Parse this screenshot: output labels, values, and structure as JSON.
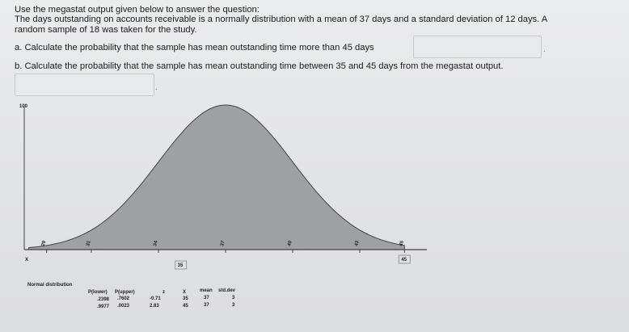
{
  "question": {
    "intro": "Use the megastat output given below to answer the question:",
    "description_line1": "The days outstanding on accounts receivable is a normally distribution with a mean of 37 days and a standard deviation of 12 days. A",
    "description_line2": "random sample of 18 was taken for the study.",
    "part_a": "a. Calculate the probability that the sample has mean outstanding time more than 45 days",
    "part_b": "b. Calculate the probability that the sample has mean outstanding time between 35 and 45 days from the megastat output."
  },
  "answers": {
    "a_value": "",
    "b_value": ""
  },
  "chart_data": {
    "type": "area",
    "distribution": "normal",
    "mean": 37,
    "std_dev": 3,
    "x_axis_label": "X",
    "y_axis_top_label": "100",
    "x_tick_labels": [
      "29",
      "31",
      "34",
      "37",
      "40",
      "43",
      "45"
    ],
    "x_ticks": [
      29,
      31,
      34,
      37,
      40,
      43,
      45
    ],
    "marked_values": [
      "35",
      "45"
    ],
    "xlim": [
      28,
      46
    ],
    "shaded_range": [
      28.2,
      45
    ]
  },
  "megastat_table": {
    "title": "Normal distribution",
    "headers": [
      "P(lower)",
      "P(upper)",
      "z",
      "X",
      "mean",
      "std.dev"
    ],
    "rows": [
      [
        ".2398",
        ".7602",
        "-0.71",
        "35",
        "37",
        "3"
      ],
      [
        ".9977",
        ".0023",
        "2.83",
        "45",
        "37",
        "3"
      ]
    ]
  }
}
